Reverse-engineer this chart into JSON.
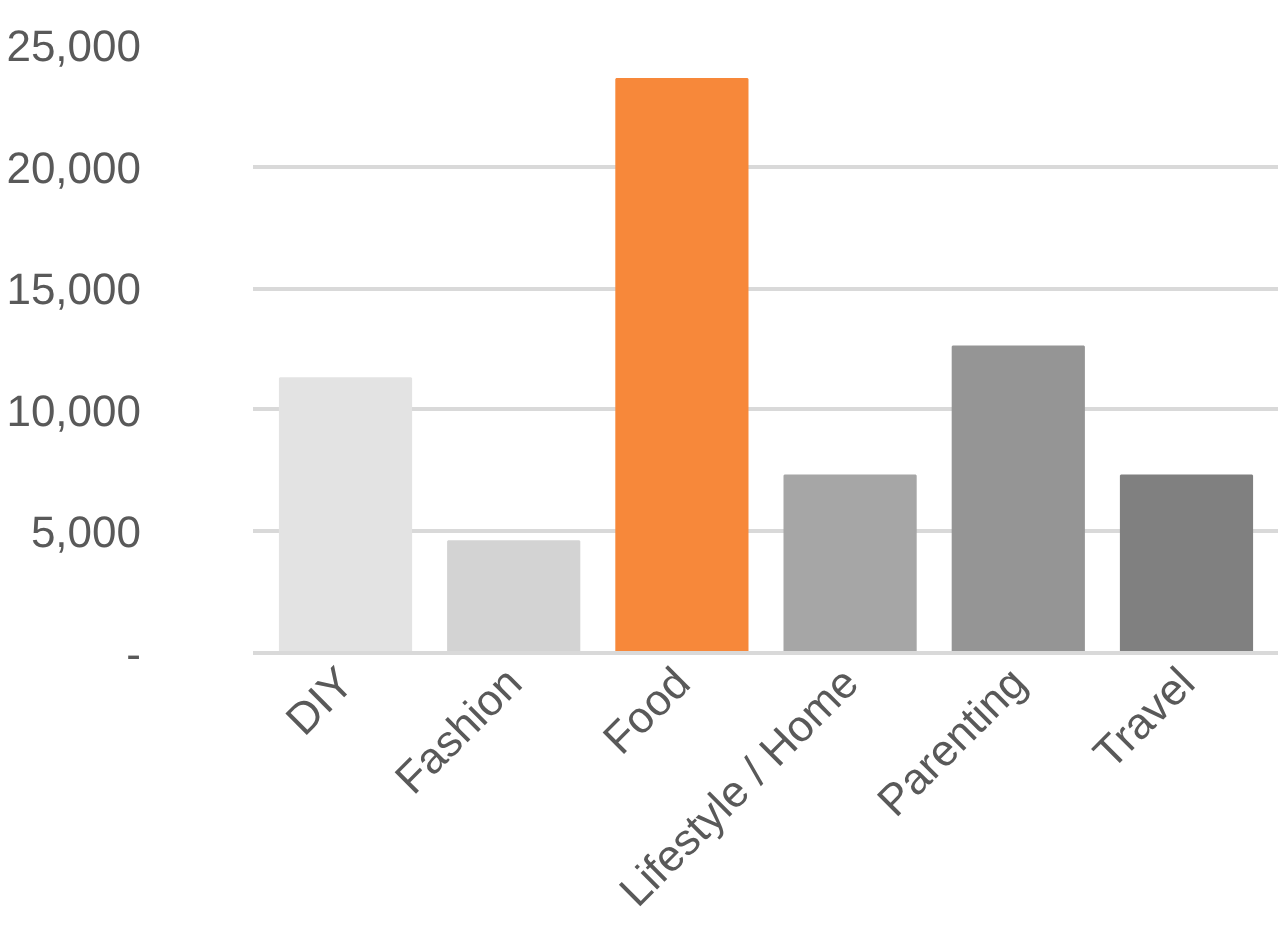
{
  "chart_data": {
    "type": "bar",
    "categories": [
      "DIY",
      "Fashion",
      "Food",
      "Lifestyle / Home",
      "Parenting",
      "Travel"
    ],
    "values": [
      11300,
      4600,
      23600,
      7300,
      12600,
      7300
    ],
    "colors": [
      "#e3e3e3",
      "#d3d3d3",
      "#f7883a",
      "#a6a6a6",
      "#959595",
      "#808080"
    ],
    "ylim": [
      0,
      25000
    ],
    "yticks": [
      {
        "value": 0,
        "label": "-"
      },
      {
        "value": 5000,
        "label": "5,000"
      },
      {
        "value": 10000,
        "label": "10,000"
      },
      {
        "value": 15000,
        "label": "15,000"
      },
      {
        "value": 20000,
        "label": "20,000"
      },
      {
        "value": 25000,
        "label": "25,000"
      }
    ],
    "grid": "y"
  }
}
